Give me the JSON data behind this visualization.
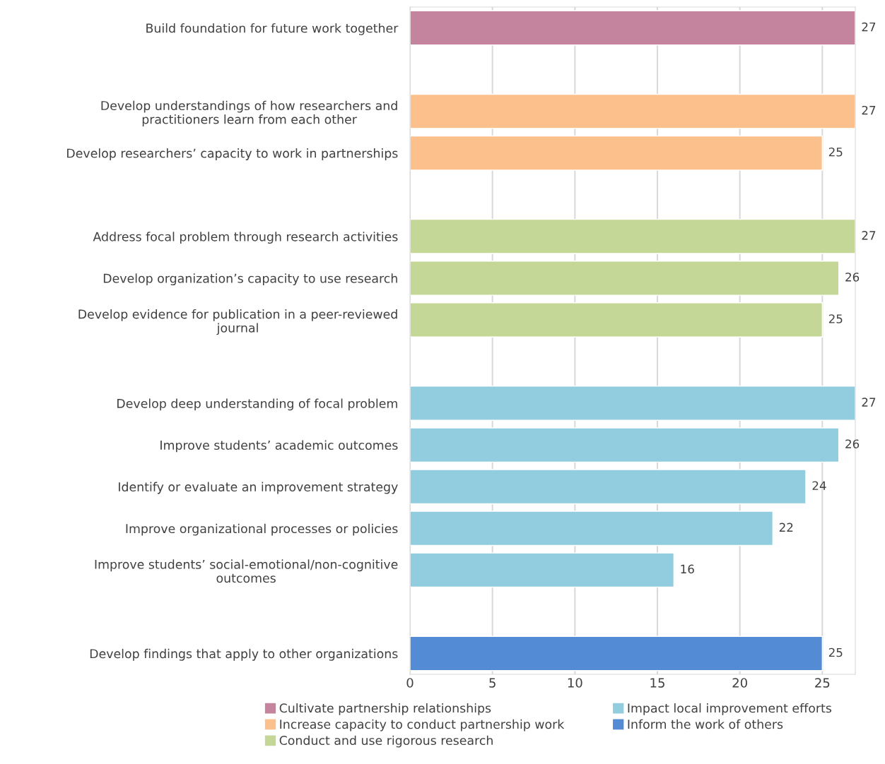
{
  "chart_data": {
    "type": "bar",
    "orientation": "horizontal",
    "categories": [
      "Build foundation for future work together",
      null,
      "Develop understandings of how researchers and\npractitioners learn from each other",
      "Develop researchers’ capacity to work in partnerships",
      null,
      "Address focal problem through research activities",
      "Develop organization’s capacity to use research",
      "Develop evidence for publication in a peer-reviewed\njournal",
      null,
      "Develop deep understanding of focal problem",
      "Improve students’ academic outcomes",
      "Identify or evaluate an improvement strategy",
      "Improve organizational processes or policies",
      "Improve students’ social-emotional/non-cognitive\noutcomes",
      null,
      "Develop findings that apply to other organizations"
    ],
    "series": [
      {
        "name": "Cultivate partnership relationships",
        "color": "#c5849e",
        "values": [
          27,
          null,
          null,
          null,
          null,
          null,
          null,
          null,
          null,
          null,
          null,
          null,
          null,
          null,
          null,
          null
        ]
      },
      {
        "name": "Increase capacity to conduct partnership work",
        "color": "#fcc08c",
        "values": [
          null,
          null,
          27,
          25,
          null,
          null,
          null,
          null,
          null,
          null,
          null,
          null,
          null,
          null,
          null,
          null
        ]
      },
      {
        "name": "Conduct and use rigorous research",
        "color": "#c4d797",
        "values": [
          null,
          null,
          null,
          null,
          null,
          27,
          26,
          25,
          null,
          null,
          null,
          null,
          null,
          null,
          null,
          null
        ]
      },
      {
        "name": "Impact local improvement efforts",
        "color": "#92cddf",
        "values": [
          null,
          null,
          null,
          null,
          null,
          null,
          null,
          null,
          null,
          27,
          26,
          24,
          22,
          16,
          null,
          null
        ]
      },
      {
        "name": "Inform the work of others",
        "color": "#538cd5",
        "values": [
          null,
          null,
          null,
          null,
          null,
          null,
          null,
          null,
          null,
          null,
          null,
          null,
          null,
          null,
          null,
          25
        ]
      }
    ],
    "xlim": [
      0,
      27
    ],
    "xticks": [
      0,
      5,
      10,
      15,
      20,
      25
    ],
    "grid": "x",
    "legend": "bottom",
    "data_labels": true
  }
}
